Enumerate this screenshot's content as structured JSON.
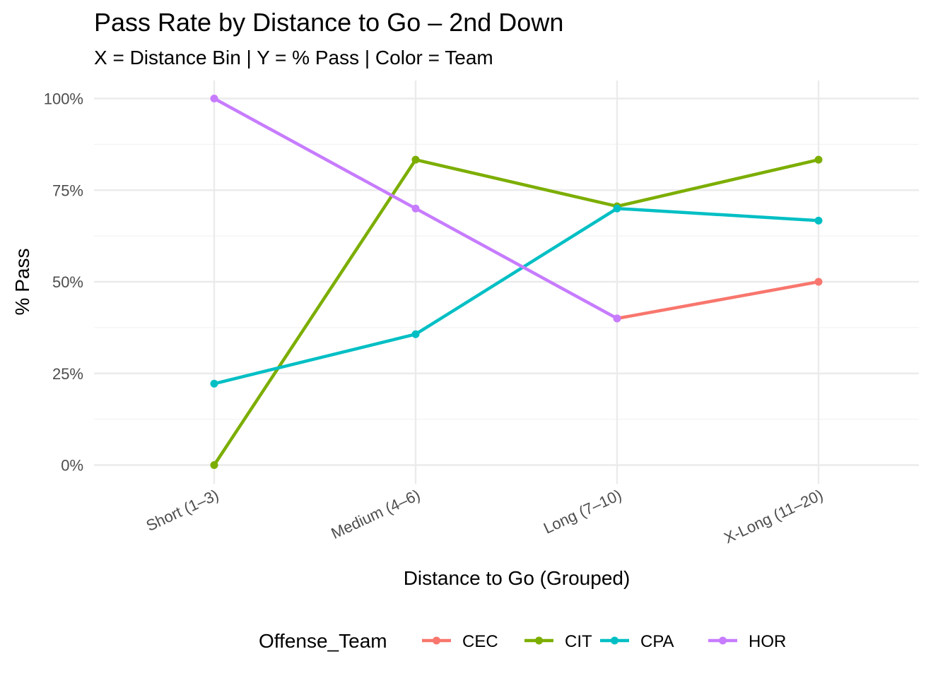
{
  "chart_data": {
    "type": "line",
    "title": "Pass Rate by Distance to Go – 2nd Down",
    "subtitle": "X = Distance Bin | Y = % Pass | Color = Team",
    "xlabel": "Distance to Go (Grouped)",
    "ylabel": "% Pass",
    "categories": [
      "Short (1–3)",
      "Medium (4–6)",
      "Long (7–10)",
      "X-Long (11–20)"
    ],
    "y_ticks": [
      0,
      25,
      50,
      75,
      100
    ],
    "y_tick_labels": [
      "0%",
      "25%",
      "50%",
      "75%",
      "100%"
    ],
    "ylim": [
      0,
      100
    ],
    "grid": true,
    "legend": {
      "title": "Offense_Team",
      "position": "bottom"
    },
    "series": [
      {
        "name": "CEC",
        "color": "#F8766D",
        "values": [
          null,
          null,
          40,
          50
        ]
      },
      {
        "name": "CIT",
        "color": "#7CAE00",
        "values": [
          0,
          83.3,
          70.6,
          83.3
        ]
      },
      {
        "name": "CPA",
        "color": "#00BFC4",
        "values": [
          22.2,
          35.7,
          70,
          66.7
        ]
      },
      {
        "name": "HOR",
        "color": "#C77CFF",
        "values": [
          100,
          70,
          40,
          null
        ]
      }
    ]
  }
}
